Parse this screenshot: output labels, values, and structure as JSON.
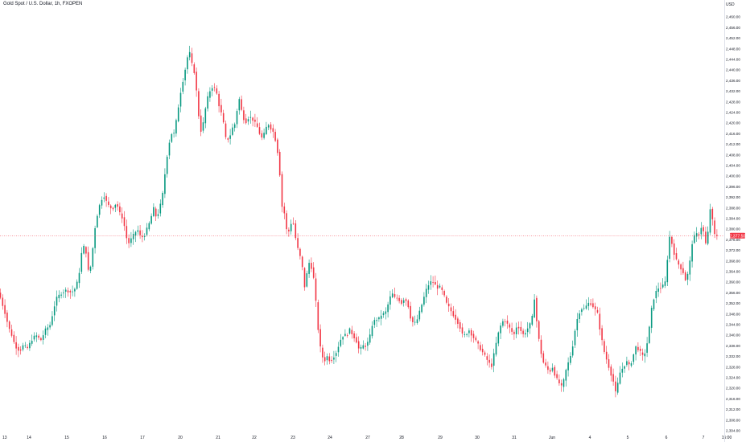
{
  "header": {
    "symbol_title": "Gold Spot / U.S. Dollar, 1h, FXOPEN",
    "currency": "USD"
  },
  "colors": {
    "up": "#089981",
    "down": "#f23645",
    "last_price_line": "#f23645"
  },
  "chart_data": {
    "type": "candlestick",
    "title": "Gold Spot / U.S. Dollar, 1h, FXOPEN",
    "y_axis": {
      "ylim": [
        2301.3,
        2463.9
      ],
      "ticks": [
        "2,460.00",
        "2,456.00",
        "2,452.00",
        "2,448.00",
        "2,444.00",
        "2,440.00",
        "2,436.00",
        "2,432.00",
        "2,428.00",
        "2,424.00",
        "2,420.00",
        "2,416.00",
        "2,412.00",
        "2,408.00",
        "2,404.00",
        "2,400.00",
        "2,396.00",
        "2,392.00",
        "2,388.00",
        "2,384.00",
        "2,380.00",
        "2,376.00",
        "2,372.00",
        "2,368.00",
        "2,364.00",
        "2,360.00",
        "2,356.00",
        "2,352.00",
        "2,348.00",
        "2,344.00",
        "2,340.00",
        "2,336.00",
        "2,332.00",
        "2,328.00",
        "2,324.00",
        "2,320.00",
        "2,316.00",
        "2,312.00",
        "2,308.00",
        "2,304.00"
      ],
      "last_price_label": "2,377.50"
    },
    "x_axis": {
      "ticks": [
        "13",
        "14",
        "15",
        "16",
        "17",
        "20",
        "21",
        "22",
        "23",
        "24",
        "27",
        "28",
        "29",
        "30",
        "31",
        "Jun",
        "4",
        "5",
        "6",
        "7",
        "15:00"
      ]
    },
    "last_price": 2377.5,
    "price_path": [
      [
        0,
        2356
      ],
      [
        4,
        2352
      ],
      [
        8,
        2348
      ],
      [
        12,
        2343
      ],
      [
        16,
        2340
      ],
      [
        20,
        2336
      ],
      [
        26,
        2334
      ],
      [
        30,
        2336
      ],
      [
        36,
        2335
      ],
      [
        40,
        2338
      ],
      [
        46,
        2340
      ],
      [
        52,
        2338
      ],
      [
        58,
        2342
      ],
      [
        64,
        2344
      ],
      [
        68,
        2350
      ],
      [
        72,
        2354
      ],
      [
        78,
        2356
      ],
      [
        84,
        2357
      ],
      [
        90,
        2356
      ],
      [
        96,
        2358
      ],
      [
        100,
        2364
      ],
      [
        104,
        2374
      ],
      [
        108,
        2372
      ],
      [
        112,
        2362
      ],
      [
        116,
        2370
      ],
      [
        118,
        2378
      ],
      [
        122,
        2385
      ],
      [
        126,
        2390
      ],
      [
        130,
        2393
      ],
      [
        134,
        2390
      ],
      [
        138,
        2388
      ],
      [
        142,
        2388
      ],
      [
        146,
        2390
      ],
      [
        150,
        2386
      ],
      [
        154,
        2384
      ],
      [
        158,
        2378
      ],
      [
        160,
        2374
      ],
      [
        164,
        2376
      ],
      [
        168,
        2378
      ],
      [
        172,
        2380
      ],
      [
        176,
        2377
      ],
      [
        180,
        2377
      ],
      [
        184,
        2380
      ],
      [
        188,
        2383
      ],
      [
        192,
        2388
      ],
      [
        196,
        2384
      ],
      [
        200,
        2388
      ],
      [
        204,
        2394
      ],
      [
        206,
        2400
      ],
      [
        210,
        2410
      ],
      [
        214,
        2416
      ],
      [
        218,
        2416
      ],
      [
        222,
        2424
      ],
      [
        226,
        2432
      ],
      [
        230,
        2438
      ],
      [
        234,
        2444
      ],
      [
        236,
        2449
      ],
      [
        238,
        2444
      ],
      [
        242,
        2440
      ],
      [
        244,
        2438
      ],
      [
        246,
        2430
      ],
      [
        248,
        2424
      ],
      [
        250,
        2416
      ],
      [
        254,
        2420
      ],
      [
        258,
        2428
      ],
      [
        262,
        2432
      ],
      [
        266,
        2434
      ],
      [
        270,
        2432
      ],
      [
        274,
        2426
      ],
      [
        278,
        2422
      ],
      [
        282,
        2414
      ],
      [
        286,
        2414
      ],
      [
        290,
        2418
      ],
      [
        294,
        2420
      ],
      [
        298,
        2430
      ],
      [
        302,
        2424
      ],
      [
        306,
        2420
      ],
      [
        310,
        2422
      ],
      [
        314,
        2422
      ],
      [
        318,
        2420
      ],
      [
        322,
        2418
      ],
      [
        326,
        2414
      ],
      [
        330,
        2416
      ],
      [
        334,
        2420
      ],
      [
        338,
        2418
      ],
      [
        342,
        2416
      ],
      [
        346,
        2410
      ],
      [
        350,
        2398
      ],
      [
        352,
        2388
      ],
      [
        356,
        2385
      ],
      [
        358,
        2378
      ],
      [
        362,
        2380
      ],
      [
        364,
        2384
      ],
      [
        366,
        2382
      ],
      [
        368,
        2378
      ],
      [
        370,
        2374
      ],
      [
        374,
        2370
      ],
      [
        378,
        2364
      ],
      [
        380,
        2358
      ],
      [
        382,
        2362
      ],
      [
        386,
        2368
      ],
      [
        388,
        2366
      ],
      [
        392,
        2360
      ],
      [
        396,
        2344
      ],
      [
        400,
        2334
      ],
      [
        404,
        2330
      ],
      [
        408,
        2332
      ],
      [
        412,
        2330
      ],
      [
        416,
        2332
      ],
      [
        420,
        2334
      ],
      [
        424,
        2338
      ],
      [
        428,
        2340
      ],
      [
        432,
        2340
      ],
      [
        436,
        2342
      ],
      [
        440,
        2340
      ],
      [
        444,
        2338
      ],
      [
        448,
        2334
      ],
      [
        452,
        2336
      ],
      [
        456,
        2336
      ],
      [
        460,
        2338
      ],
      [
        464,
        2344
      ],
      [
        468,
        2346
      ],
      [
        472,
        2346
      ],
      [
        476,
        2348
      ],
      [
        480,
        2348
      ],
      [
        484,
        2352
      ],
      [
        488,
        2356
      ],
      [
        492,
        2354
      ],
      [
        496,
        2354
      ],
      [
        500,
        2352
      ],
      [
        504,
        2354
      ],
      [
        508,
        2352
      ],
      [
        512,
        2346
      ],
      [
        516,
        2344
      ],
      [
        520,
        2346
      ],
      [
        524,
        2350
      ],
      [
        528,
        2354
      ],
      [
        532,
        2358
      ],
      [
        536,
        2360
      ],
      [
        540,
        2360
      ],
      [
        544,
        2358
      ],
      [
        548,
        2358
      ],
      [
        552,
        2356
      ],
      [
        556,
        2352
      ],
      [
        560,
        2350
      ],
      [
        564,
        2348
      ],
      [
        568,
        2346
      ],
      [
        572,
        2344
      ],
      [
        576,
        2340
      ],
      [
        580,
        2340
      ],
      [
        584,
        2342
      ],
      [
        588,
        2340
      ],
      [
        592,
        2338
      ],
      [
        596,
        2336
      ],
      [
        600,
        2334
      ],
      [
        604,
        2332
      ],
      [
        608,
        2330
      ],
      [
        612,
        2328
      ],
      [
        616,
        2334
      ],
      [
        620,
        2340
      ],
      [
        624,
        2344
      ],
      [
        628,
        2346
      ],
      [
        632,
        2344
      ],
      [
        636,
        2342
      ],
      [
        640,
        2340
      ],
      [
        644,
        2344
      ],
      [
        648,
        2342
      ],
      [
        652,
        2340
      ],
      [
        656,
        2342
      ],
      [
        660,
        2344
      ],
      [
        664,
        2348
      ],
      [
        666,
        2356
      ],
      [
        668,
        2346
      ],
      [
        672,
        2336
      ],
      [
        676,
        2330
      ],
      [
        680,
        2328
      ],
      [
        684,
        2326
      ],
      [
        688,
        2328
      ],
      [
        692,
        2324
      ],
      [
        696,
        2322
      ],
      [
        700,
        2320
      ],
      [
        704,
        2326
      ],
      [
        708,
        2330
      ],
      [
        712,
        2334
      ],
      [
        716,
        2342
      ],
      [
        720,
        2348
      ],
      [
        724,
        2350
      ],
      [
        728,
        2350
      ],
      [
        732,
        2352
      ],
      [
        736,
        2352
      ],
      [
        740,
        2350
      ],
      [
        744,
        2348
      ],
      [
        748,
        2340
      ],
      [
        752,
        2334
      ],
      [
        756,
        2330
      ],
      [
        760,
        2326
      ],
      [
        764,
        2322
      ],
      [
        766,
        2318
      ],
      [
        768,
        2320
      ],
      [
        772,
        2326
      ],
      [
        776,
        2328
      ],
      [
        780,
        2330
      ],
      [
        784,
        2328
      ],
      [
        788,
        2332
      ],
      [
        792,
        2336
      ],
      [
        796,
        2334
      ],
      [
        800,
        2332
      ],
      [
        804,
        2334
      ],
      [
        808,
        2342
      ],
      [
        812,
        2352
      ],
      [
        816,
        2356
      ],
      [
        820,
        2358
      ],
      [
        824,
        2358
      ],
      [
        828,
        2360
      ],
      [
        830,
        2366
      ],
      [
        832,
        2374
      ],
      [
        834,
        2378
      ],
      [
        838,
        2372
      ],
      [
        842,
        2368
      ],
      [
        846,
        2366
      ],
      [
        850,
        2364
      ],
      [
        854,
        2360
      ],
      [
        858,
        2366
      ],
      [
        862,
        2376
      ],
      [
        866,
        2378
      ],
      [
        870,
        2378
      ],
      [
        874,
        2382
      ],
      [
        878,
        2374
      ],
      [
        882,
        2380
      ],
      [
        884,
        2388
      ],
      [
        886,
        2386
      ],
      [
        888,
        2378
      ],
      [
        892,
        2377.5
      ]
    ]
  }
}
